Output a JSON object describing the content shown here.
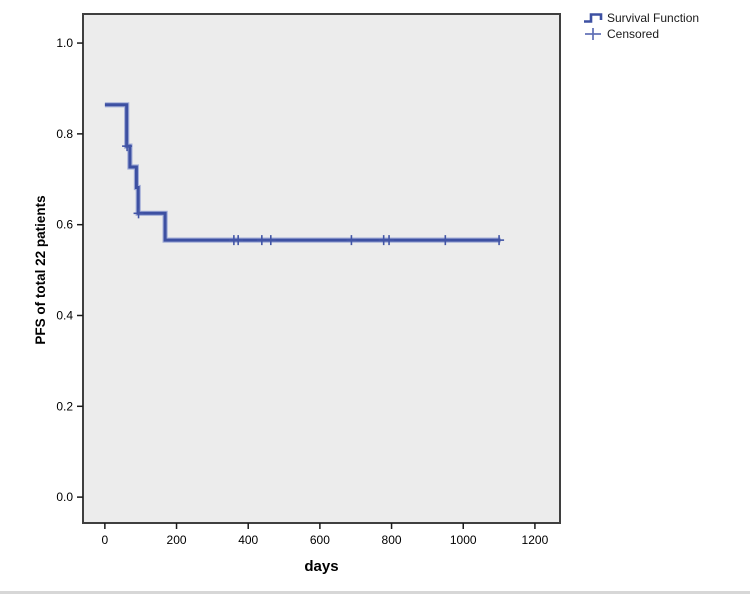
{
  "chart_data": {
    "type": "line",
    "subtype": "kaplan-meier-step",
    "title": "",
    "xlabel": "days",
    "ylabel": "PFS of total 22 patients",
    "x_ticks": [
      0,
      200,
      400,
      600,
      800,
      1000,
      1200
    ],
    "y_ticks": [
      0.0,
      0.2,
      0.4,
      0.6,
      0.8,
      1.0
    ],
    "xlim": [
      -61,
      1270
    ],
    "ylim": [
      -0.057,
      1.064
    ],
    "grid": false,
    "plot_bg": "#ececec",
    "frame_color": "#3f3f3f",
    "tick_color": "#1a1a1a",
    "line_color": "#3d50a2",
    "line_halo_color": "#a3aed8",
    "censor_color": "#4255a6",
    "legend": {
      "position": "top-right",
      "entries": [
        {
          "label": "Survival Function",
          "marker": "step-line-icon"
        },
        {
          "label": "Censored",
          "marker": "plus-icon"
        }
      ]
    },
    "series": [
      {
        "name": "Survival Function",
        "steps": [
          [
            0,
            0.864
          ],
          [
            61,
            0.864
          ],
          [
            61,
            0.773
          ],
          [
            70,
            0.773
          ],
          [
            70,
            0.727
          ],
          [
            88,
            0.727
          ],
          [
            88,
            0.682
          ],
          [
            93,
            0.682
          ],
          [
            93,
            0.625
          ],
          [
            168,
            0.625
          ],
          [
            168,
            0.566
          ],
          [
            1104,
            0.566
          ]
        ]
      }
    ],
    "censored_points": [
      [
        62,
        0.773
      ],
      [
        94,
        0.625
      ],
      [
        360,
        0.566
      ],
      [
        372,
        0.566
      ],
      [
        438,
        0.566
      ],
      [
        463,
        0.566
      ],
      [
        688,
        0.566
      ],
      [
        778,
        0.566
      ],
      [
        793,
        0.566
      ],
      [
        950,
        0.566
      ],
      [
        1100,
        0.566
      ]
    ]
  }
}
